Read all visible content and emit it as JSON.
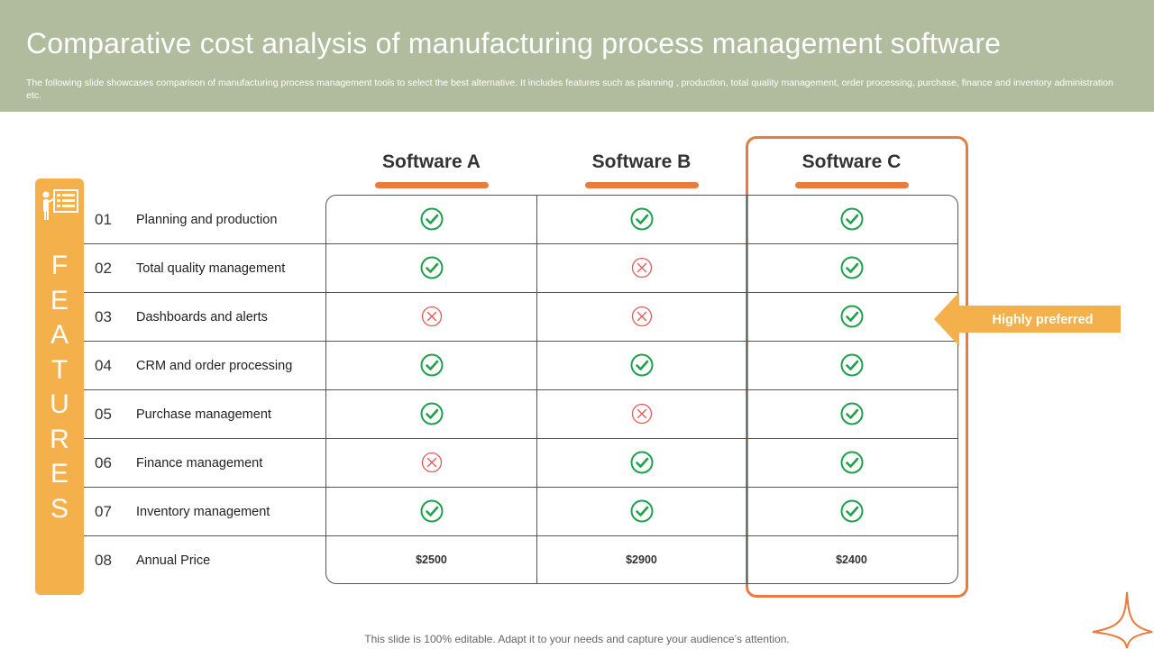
{
  "header": {
    "title": "Comparative cost analysis of manufacturing process management software",
    "subtitle": "The following slide showcases comparison of manufacturing process management tools to select the best alternative. It includes features such as planning , production, total quality management, order processing, purchase, finance and inventory administration etc."
  },
  "features_label": [
    "F",
    "E",
    "A",
    "T",
    "U",
    "R",
    "E",
    "S"
  ],
  "columns": [
    "Software A",
    "Software B",
    "Software C"
  ],
  "rows": [
    {
      "num": "01",
      "label": "Planning and production",
      "values": [
        "check",
        "check",
        "check"
      ]
    },
    {
      "num": "02",
      "label": "Total quality management",
      "values": [
        "check",
        "cross",
        "check"
      ]
    },
    {
      "num": "03",
      "label": "Dashboards and alerts",
      "values": [
        "cross",
        "cross",
        "check"
      ]
    },
    {
      "num": "04",
      "label": "CRM and order processing",
      "values": [
        "check",
        "check",
        "check"
      ]
    },
    {
      "num": "05",
      "label": "Purchase management",
      "values": [
        "check",
        "cross",
        "check"
      ]
    },
    {
      "num": "06",
      "label": "Finance management",
      "values": [
        "cross",
        "check",
        "check"
      ]
    },
    {
      "num": "07",
      "label": "Inventory management",
      "values": [
        "check",
        "check",
        "check"
      ]
    }
  ],
  "price_row": {
    "num": "08",
    "label": "Annual Price",
    "values": [
      "$2500",
      "$2900",
      "$2400"
    ]
  },
  "callout": {
    "text": "Highly preferred"
  },
  "footer": "This slide is 100% editable. Adapt it to your needs and capture your audience’s attention.",
  "colors": {
    "header_bg": "#b1bb9e",
    "accent_orange": "#e97b3c",
    "features_yellow": "#f3b04b",
    "check_green": "#1ea14a",
    "cross_red": "#e05a57"
  }
}
